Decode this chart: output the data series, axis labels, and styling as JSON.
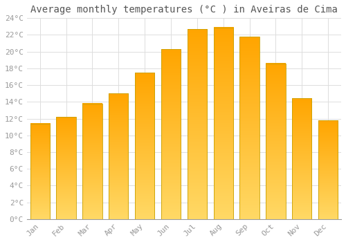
{
  "title": "Average monthly temperatures (°C ) in Aveiras de Cima",
  "months": [
    "Jan",
    "Feb",
    "Mar",
    "Apr",
    "May",
    "Jun",
    "Jul",
    "Aug",
    "Sep",
    "Oct",
    "Nov",
    "Dec"
  ],
  "temperatures": [
    11.4,
    12.2,
    13.8,
    15.0,
    17.5,
    20.3,
    22.7,
    22.9,
    21.8,
    18.6,
    14.4,
    11.8
  ],
  "bar_color_top": "#FFA500",
  "bar_color_bottom": "#FFD966",
  "bar_edge_color": "#C8A000",
  "ylim": [
    0,
    24
  ],
  "ytick_step": 2,
  "background_color": "#ffffff",
  "grid_color": "#dddddd",
  "title_fontsize": 10,
  "tick_fontsize": 8,
  "font_family": "monospace",
  "tick_color": "#999999",
  "title_color": "#555555"
}
